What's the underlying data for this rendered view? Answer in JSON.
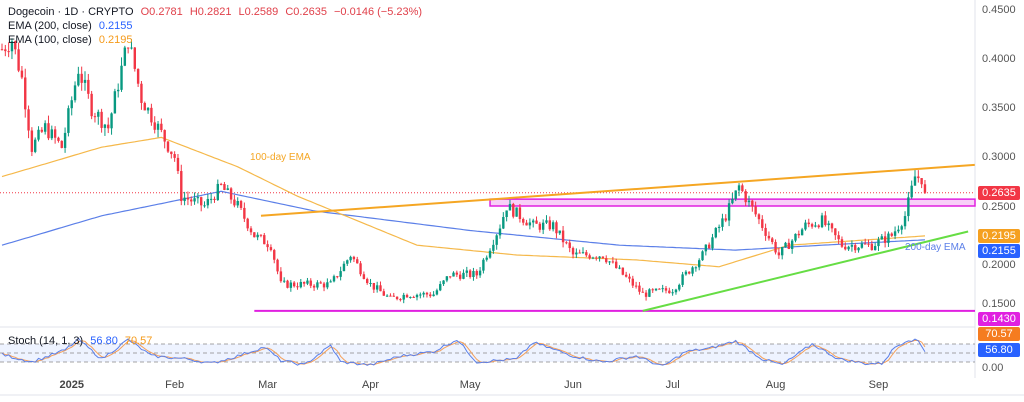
{
  "header": {
    "symbol": "Dogecoin · 1D · CRYPTO",
    "open": "O0.2781",
    "high": "H0.2821",
    "low": "L0.2589",
    "close": "C0.2635",
    "change": "−0.0146 (−5.23%)",
    "ema200_label": "EMA (200, close)",
    "ema200_value": "0.2155",
    "ema100_label": "EMA (100, close)",
    "ema100_value": "0.2195"
  },
  "chart_data": {
    "type": "candlestick",
    "title": "Dogecoin · 1D · CRYPTO",
    "start_date": "2024-12-11",
    "ylim": [
      0.1,
      0.45
    ],
    "y_ticks": [
      "0.4500",
      "0.4000",
      "0.3500",
      "0.3000",
      "0.2500",
      "0.2000",
      "0.1500"
    ],
    "x_ticks": [
      {
        "label": "2025",
        "date": "2025-01-01"
      },
      {
        "label": "Feb",
        "date": "2025-02-01"
      },
      {
        "label": "Mar",
        "date": "2025-03-01"
      },
      {
        "label": "Apr",
        "date": "2025-04-01"
      },
      {
        "label": "May",
        "date": "2025-05-01"
      },
      {
        "label": "Jun",
        "date": "2025-06-01"
      },
      {
        "label": "Jul",
        "date": "2025-07-01"
      },
      {
        "label": "Aug",
        "date": "2025-08-01"
      },
      {
        "label": "Sep",
        "date": "2025-09-01"
      }
    ],
    "close_keypoints": [
      [
        "2024-12-11",
        0.41
      ],
      [
        "2024-12-14",
        0.42
      ],
      [
        "2024-12-17",
        0.38
      ],
      [
        "2024-12-20",
        0.31
      ],
      [
        "2024-12-24",
        0.33
      ],
      [
        "2024-12-29",
        0.31
      ],
      [
        "2025-01-03",
        0.39
      ],
      [
        "2025-01-07",
        0.35
      ],
      [
        "2025-01-12",
        0.33
      ],
      [
        "2025-01-18",
        0.42
      ],
      [
        "2025-01-22",
        0.36
      ],
      [
        "2025-01-27",
        0.33
      ],
      [
        "2025-02-01",
        0.3
      ],
      [
        "2025-02-03",
        0.26
      ],
      [
        "2025-02-10",
        0.25
      ],
      [
        "2025-02-15",
        0.27
      ],
      [
        "2025-02-20",
        0.25
      ],
      [
        "2025-02-25",
        0.22
      ],
      [
        "2025-03-02",
        0.21
      ],
      [
        "2025-03-05",
        0.17
      ],
      [
        "2025-03-12",
        0.17
      ],
      [
        "2025-03-20",
        0.17
      ],
      [
        "2025-03-26",
        0.2
      ],
      [
        "2025-04-01",
        0.17
      ],
      [
        "2025-04-07",
        0.155
      ],
      [
        "2025-04-12",
        0.16
      ],
      [
        "2025-04-20",
        0.16
      ],
      [
        "2025-04-25",
        0.18
      ],
      [
        "2025-05-03",
        0.18
      ],
      [
        "2025-05-10",
        0.23
      ],
      [
        "2025-05-12",
        0.25
      ],
      [
        "2025-05-20",
        0.23
      ],
      [
        "2025-05-26",
        0.23
      ],
      [
        "2025-06-01",
        0.2
      ],
      [
        "2025-06-10",
        0.2
      ],
      [
        "2025-06-16",
        0.18
      ],
      [
        "2025-06-22",
        0.16
      ],
      [
        "2025-07-01",
        0.165
      ],
      [
        "2025-07-10",
        0.2
      ],
      [
        "2025-07-17",
        0.24
      ],
      [
        "2025-07-21",
        0.27
      ],
      [
        "2025-07-28",
        0.23
      ],
      [
        "2025-08-02",
        0.2
      ],
      [
        "2025-08-10",
        0.23
      ],
      [
        "2025-08-15",
        0.235
      ],
      [
        "2025-08-21",
        0.21
      ],
      [
        "2025-08-30",
        0.21
      ],
      [
        "2025-09-05",
        0.22
      ],
      [
        "2025-09-09",
        0.24
      ],
      [
        "2025-09-12",
        0.28
      ],
      [
        "2025-09-14",
        0.2781
      ],
      [
        "2025-09-15",
        0.2635
      ]
    ],
    "last_price": 0.2635,
    "ema100": {
      "name": "EMA (100, close)",
      "value": 0.2195,
      "color": "#f5a623",
      "keypoints": [
        [
          "2024-12-11",
          0.28
        ],
        [
          "2025-01-10",
          0.31
        ],
        [
          "2025-01-28",
          0.32
        ],
        [
          "2025-02-20",
          0.29
        ],
        [
          "2025-03-10",
          0.26
        ],
        [
          "2025-04-15",
          0.21
        ],
        [
          "2025-05-15",
          0.2
        ],
        [
          "2025-06-20",
          0.195
        ],
        [
          "2025-07-15",
          0.188
        ],
        [
          "2025-08-05",
          0.21
        ],
        [
          "2025-09-15",
          0.2195
        ]
      ]
    },
    "ema200": {
      "name": "EMA (200, close)",
      "value": 0.2155,
      "color": "#2962ff",
      "keypoints": [
        [
          "2024-12-11",
          0.21
        ],
        [
          "2025-01-10",
          0.24
        ],
        [
          "2025-02-15",
          0.265
        ],
        [
          "2025-03-15",
          0.245
        ],
        [
          "2025-05-01",
          0.225
        ],
        [
          "2025-06-15",
          0.21
        ],
        [
          "2025-07-20",
          0.205
        ],
        [
          "2025-08-15",
          0.21
        ],
        [
          "2025-09-15",
          0.2155
        ]
      ]
    },
    "annotations": [
      {
        "text": "100-day EMA",
        "color": "#f5a623"
      },
      {
        "text": "200-day EMA",
        "color": "#2962ff"
      }
    ],
    "lines": {
      "resistance": {
        "from": [
          "2025-02-27",
          0.24
        ],
        "to": [
          "2025-09-30",
          0.292
        ],
        "color": "#f5a623"
      },
      "support_trend": {
        "from": [
          "2025-06-22",
          0.143
        ],
        "to": [
          "2025-09-28",
          0.224
        ],
        "color": "#66dd44"
      },
      "horizontal_support": {
        "from": "2025-02-25",
        "value": 0.143,
        "label": "0.1430",
        "color": "#e020e0"
      },
      "zone": {
        "from": "2025-05-07",
        "range": [
          0.25,
          0.257
        ],
        "color": "#e020e0"
      }
    },
    "price_tags": [
      {
        "label": "0.2635",
        "value": 0.2635,
        "color": "#f23645"
      },
      {
        "label": "0.2195",
        "value": 0.2195,
        "color": "#f5a020"
      },
      {
        "label": "0.2155",
        "value": 0.2155,
        "color": "#2962ff"
      },
      {
        "label": "0.1430",
        "value": 0.143,
        "color": "#e020e0"
      }
    ],
    "stoch": {
      "label": "Stoch (14, 1, 3)",
      "k_value": "56.80",
      "d_value": "70.57",
      "zero_label": "0.00",
      "levels": [
        80,
        50,
        20
      ],
      "k_keypoints": [
        [
          "2024-12-11",
          45
        ],
        [
          "2024-12-20",
          20
        ],
        [
          "2024-12-30",
          60
        ],
        [
          "2025-01-03",
          95
        ],
        [
          "2025-01-10",
          30
        ],
        [
          "2025-01-18",
          95
        ],
        [
          "2025-01-25",
          40
        ],
        [
          "2025-02-05",
          30
        ],
        [
          "2025-02-12",
          15
        ],
        [
          "2025-02-20",
          40
        ],
        [
          "2025-02-28",
          70
        ],
        [
          "2025-03-05",
          25
        ],
        [
          "2025-03-12",
          10
        ],
        [
          "2025-03-20",
          75
        ],
        [
          "2025-03-23",
          20
        ],
        [
          "2025-04-01",
          10
        ],
        [
          "2025-04-10",
          40
        ],
        [
          "2025-04-20",
          55
        ],
        [
          "2025-04-27",
          95
        ],
        [
          "2025-05-03",
          20
        ],
        [
          "2025-05-15",
          30
        ],
        [
          "2025-05-20",
          85
        ],
        [
          "2025-06-01",
          40
        ],
        [
          "2025-06-10",
          20
        ],
        [
          "2025-06-20",
          40
        ],
        [
          "2025-06-28",
          5
        ],
        [
          "2025-07-05",
          55
        ],
        [
          "2025-07-12",
          65
        ],
        [
          "2025-07-20",
          90
        ],
        [
          "2025-07-28",
          30
        ],
        [
          "2025-08-03",
          10
        ],
        [
          "2025-08-12",
          80
        ],
        [
          "2025-08-20",
          30
        ],
        [
          "2025-08-28",
          15
        ],
        [
          "2025-09-02",
          15
        ],
        [
          "2025-09-06",
          70
        ],
        [
          "2025-09-10",
          95
        ],
        [
          "2025-09-13",
          90
        ],
        [
          "2025-09-15",
          56.8
        ]
      ]
    }
  }
}
